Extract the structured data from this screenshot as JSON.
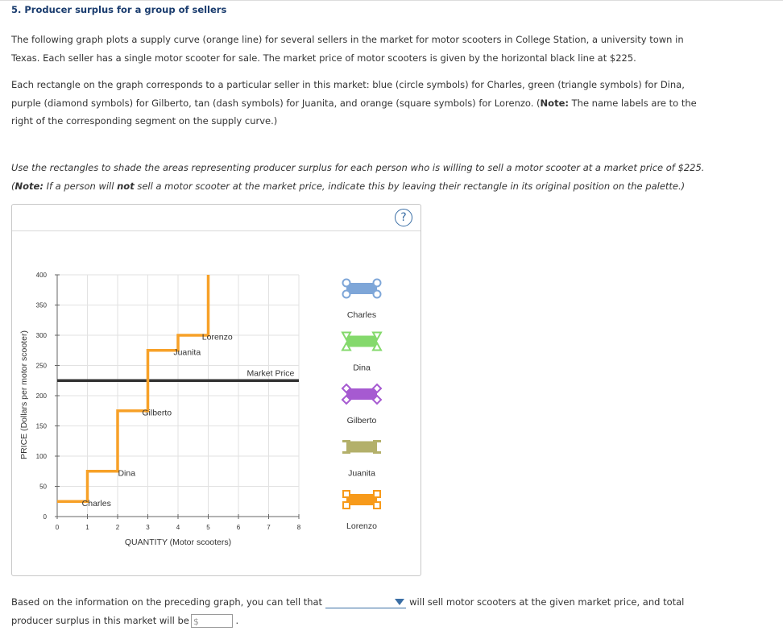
{
  "question": {
    "title": "5. Producer surplus for a group of sellers",
    "p1_line1": "The following graph plots a supply curve (orange line) for several sellers in the market for motor scooters in College Station, a university town in",
    "p1_line2": "Texas. Each seller has a single motor scooter for sale. The market price of motor scooters is given by the horizontal black line at $225.",
    "p2_line1": "Each rectangle on the graph corresponds to a particular seller in this market: blue (circle symbols) for Charles, green (triangle symbols) for Dina,",
    "p2_line2a": "purple (diamond symbols) for Gilberto, tan (dash symbols) for Juanita, and orange (square symbols) for Lorenzo. (",
    "p2_note": "Note:",
    "p2_line2b": " The name labels are to the",
    "p2_line3": "right of the corresponding segment on the supply curve.)",
    "p3_line1": "Use the rectangles to shade the areas representing producer surplus for each person who is willing to sell a motor scooter at a market price of $225.",
    "p3_line2a": "(",
    "p3_note": "Note:",
    "p3_line2b": " If a person will ",
    "p3_not": "not",
    "p3_line2c": " sell a motor scooter at the market price, indicate this by leaving their rectangle in its original position on the palette.)"
  },
  "help_label": "?",
  "chart_data": {
    "type": "line",
    "xlabel": "QUANTITY (Motor scooters)",
    "ylabel": "PRICE (Dollars per motor scooter)",
    "xlim": [
      0,
      8
    ],
    "ylim": [
      0,
      400
    ],
    "x_ticks": [
      0,
      1,
      2,
      3,
      4,
      5,
      6,
      7,
      8
    ],
    "y_ticks": [
      0,
      50,
      100,
      150,
      200,
      250,
      300,
      350,
      400
    ],
    "grid": true,
    "supply_steps": [
      {
        "name": "Charles",
        "x0": 0,
        "x1": 1,
        "price": 25
      },
      {
        "name": "Dina",
        "x0": 1,
        "x1": 2,
        "price": 75
      },
      {
        "name": "Gilberto",
        "x0": 2,
        "x1": 3,
        "price": 175
      },
      {
        "name": "Juanita",
        "x0": 3,
        "x1": 4,
        "price": 275
      },
      {
        "name": "Lorenzo",
        "x0": 4,
        "x1": 5,
        "price": 300
      }
    ],
    "supply_top": 400,
    "market_price": 225,
    "market_price_label": "Market Price",
    "step_labels": [
      {
        "text": "Charles",
        "x": 1.3,
        "y": 23
      },
      {
        "text": "Dina",
        "x": 2.3,
        "y": 73
      },
      {
        "text": "Gilberto",
        "x": 3.3,
        "y": 173
      },
      {
        "text": "Juanita",
        "x": 4.3,
        "y": 273
      },
      {
        "text": "Lorenzo",
        "x": 5.3,
        "y": 298
      }
    ],
    "colors": {
      "supply": "#f7a128",
      "market": "#333333",
      "grid": "#e2e2e2"
    }
  },
  "palette": [
    {
      "name": "Charles",
      "color": "#7ea6d8",
      "symbol": "circle"
    },
    {
      "name": "Dina",
      "color": "#84d96c",
      "symbol": "triangle"
    },
    {
      "name": "Gilberto",
      "color": "#a65ad1",
      "symbol": "diamond"
    },
    {
      "name": "Juanita",
      "color": "#b3b06a",
      "symbol": "dash"
    },
    {
      "name": "Lorenzo",
      "color": "#f79a1a",
      "symbol": "square"
    }
  ],
  "bottom": {
    "text1": "Based on the information on the preceding graph, you can tell that",
    "text2": "will sell motor scooters at the given market price, and total",
    "text3": "producer surplus in this market will be",
    "dollar": "$",
    "period": "."
  }
}
